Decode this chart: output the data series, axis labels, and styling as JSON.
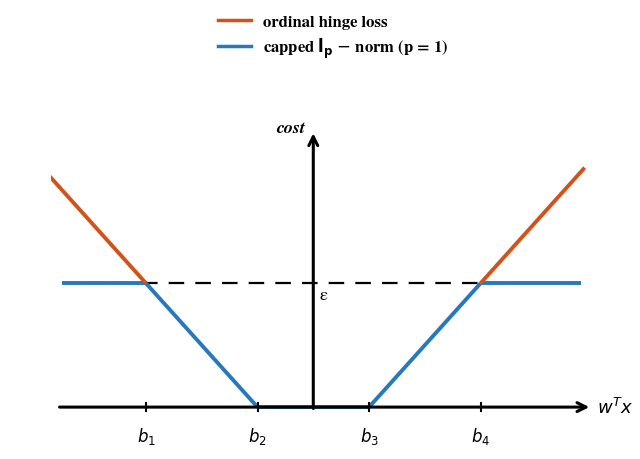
{
  "b1": -3.0,
  "b2": -1.0,
  "b3": 1.0,
  "b4": 3.0,
  "epsilon": 1.5,
  "x_min": -4.5,
  "x_max": 4.8,
  "y_min": 0.0,
  "y_max": 3.2,
  "orange_color": "#D2531A",
  "blue_color": "#2878BE",
  "legend_label_orange": "ordinal hinge loss",
  "cost_label": "cost",
  "epsilon_label": "ε",
  "b1_label": "$b_1$",
  "b2_label": "$b_2$",
  "b3_label": "$b_3$",
  "b4_label": "$b_4$",
  "wTx_label": "$w^Tx$",
  "figsize": [
    6.4,
    4.6
  ],
  "dpi": 100,
  "lw_curve": 2.8,
  "lw_axis": 2.2,
  "lw_dash": 1.6,
  "slope": 0.75,
  "y_top_orange": 2.9
}
